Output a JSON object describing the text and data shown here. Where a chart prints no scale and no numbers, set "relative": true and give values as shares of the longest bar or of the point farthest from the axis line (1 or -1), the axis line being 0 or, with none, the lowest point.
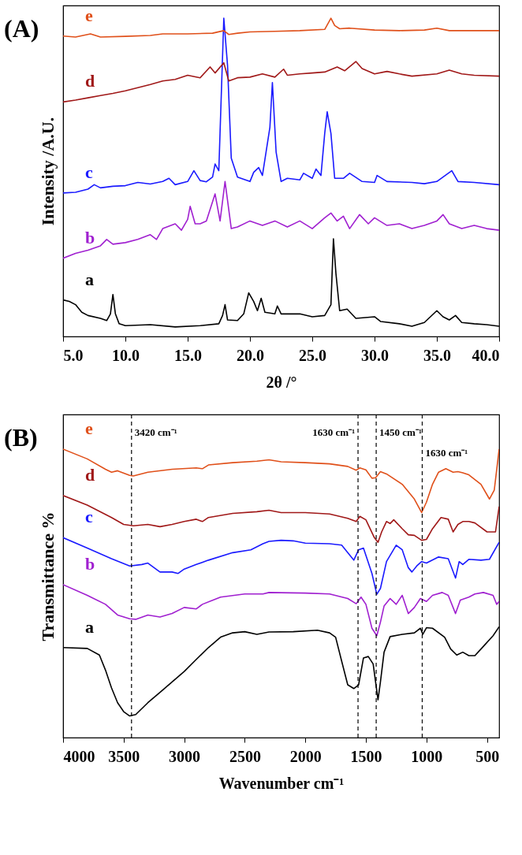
{
  "chart_data": [
    {
      "type": "line",
      "title": "(A)",
      "xlabel": "2θ /°",
      "ylabel": "Intensity /A.U.",
      "relative": true,
      "legend": false,
      "grid": false,
      "line_style": "solid",
      "xlim": [
        5,
        40
      ],
      "xticks": [
        {
          "value": 5,
          "label": "5.0"
        },
        {
          "value": 10,
          "label": "10.0"
        },
        {
          "value": 15,
          "label": "15.0"
        },
        {
          "value": 20,
          "label": "20.0"
        },
        {
          "value": 25,
          "label": "25.0"
        },
        {
          "value": 30,
          "label": "30.0"
        },
        {
          "value": 35,
          "label": "35.0"
        },
        {
          "value": 40,
          "label": "40.0"
        }
      ],
      "series": [
        {
          "name": "a",
          "color": "#000000",
          "x": [
            5,
            5.5,
            6,
            6.5,
            7,
            8,
            8.5,
            8.8,
            9.0,
            9.2,
            9.5,
            10,
            12,
            14,
            16,
            17.5,
            17.8,
            18.0,
            18.2,
            19,
            19.5,
            19.9,
            20.3,
            20.6,
            20.9,
            21.2,
            22,
            22.2,
            22.5,
            24,
            25,
            26,
            26.5,
            26.7,
            26.9,
            27.2,
            27.8,
            28.5,
            30,
            30.5,
            32,
            33,
            34,
            35,
            35.5,
            36,
            36.5,
            37,
            38,
            39,
            40
          ],
          "values": [
            0.115,
            0.11,
            0.1,
            0.076,
            0.066,
            0.057,
            0.05,
            0.071,
            0.132,
            0.071,
            0.04,
            0.034,
            0.037,
            0.03,
            0.034,
            0.04,
            0.066,
            0.1,
            0.052,
            0.05,
            0.071,
            0.137,
            0.11,
            0.081,
            0.12,
            0.076,
            0.071,
            0.096,
            0.071,
            0.071,
            0.062,
            0.066,
            0.1,
            0.307,
            0.198,
            0.081,
            0.086,
            0.057,
            0.062,
            0.047,
            0.04,
            0.032,
            0.044,
            0.081,
            0.062,
            0.052,
            0.066,
            0.044,
            0.04,
            0.037,
            0.032
          ]
        },
        {
          "name": "b",
          "color": "#a020d0",
          "x": [
            5,
            6,
            7,
            8,
            8.5,
            9,
            10,
            11,
            12,
            12.5,
            13,
            14,
            14.5,
            15,
            15.2,
            15.6,
            16,
            16.5,
            17.2,
            17.6,
            18.0,
            18.5,
            19,
            20,
            21,
            22,
            23,
            24,
            25,
            26,
            26.5,
            27,
            27.5,
            28,
            28.8,
            29.5,
            30,
            31,
            32,
            33,
            34,
            35,
            35.5,
            36,
            37,
            38,
            39,
            40
          ],
          "values": [
            0.246,
            0.261,
            0.271,
            0.285,
            0.305,
            0.29,
            0.295,
            0.305,
            0.32,
            0.305,
            0.339,
            0.354,
            0.334,
            0.368,
            0.409,
            0.354,
            0.354,
            0.363,
            0.448,
            0.363,
            0.487,
            0.339,
            0.344,
            0.363,
            0.349,
            0.363,
            0.344,
            0.363,
            0.339,
            0.373,
            0.388,
            0.363,
            0.378,
            0.339,
            0.383,
            0.354,
            0.373,
            0.349,
            0.354,
            0.339,
            0.349,
            0.363,
            0.383,
            0.354,
            0.339,
            0.349,
            0.339,
            0.334
          ]
        },
        {
          "name": "c",
          "color": "#1a1aff",
          "x": [
            5,
            6,
            7,
            7.5,
            8,
            9,
            10,
            11,
            12,
            13,
            13.5,
            14,
            15,
            15.5,
            16,
            16.5,
            17,
            17.2,
            17.5,
            17.9,
            18.2,
            18.5,
            19,
            20,
            20.3,
            20.7,
            21,
            21.6,
            21.8,
            22.1,
            22.5,
            23,
            24,
            24.3,
            25,
            25.3,
            25.7,
            26,
            26.2,
            26.5,
            26.8,
            27.5,
            28,
            29,
            30,
            30.2,
            31,
            33,
            34,
            35,
            36.2,
            36.7,
            38,
            40
          ],
          "values": [
            0.451,
            0.453,
            0.463,
            0.477,
            0.467,
            0.472,
            0.474,
            0.484,
            0.479,
            0.487,
            0.497,
            0.477,
            0.487,
            0.521,
            0.49,
            0.486,
            0.501,
            0.542,
            0.521,
            1.0,
            0.852,
            0.56,
            0.501,
            0.487,
            0.516,
            0.531,
            0.506,
            0.657,
            0.798,
            0.579,
            0.487,
            0.497,
            0.492,
            0.513,
            0.497,
            0.526,
            0.506,
            0.638,
            0.706,
            0.638,
            0.497,
            0.497,
            0.513,
            0.487,
            0.484,
            0.506,
            0.487,
            0.484,
            0.48,
            0.487,
            0.521,
            0.487,
            0.484,
            0.477
          ]
        },
        {
          "name": "d",
          "color": "#a01818",
          "x": [
            5,
            6,
            7,
            8,
            9,
            10,
            11,
            12,
            13,
            14,
            15,
            16,
            16.8,
            17.2,
            17.9,
            18.3,
            19,
            20,
            21,
            22,
            22.7,
            23,
            24,
            25,
            26,
            27,
            27.6,
            28.5,
            29,
            30,
            31,
            32,
            33,
            35,
            36,
            37,
            38,
            40
          ],
          "values": [
            0.737,
            0.743,
            0.75,
            0.757,
            0.764,
            0.772,
            0.782,
            0.792,
            0.803,
            0.808,
            0.821,
            0.813,
            0.847,
            0.828,
            0.86,
            0.803,
            0.813,
            0.815,
            0.825,
            0.815,
            0.84,
            0.821,
            0.825,
            0.828,
            0.831,
            0.847,
            0.835,
            0.864,
            0.842,
            0.825,
            0.833,
            0.825,
            0.818,
            0.825,
            0.837,
            0.825,
            0.821,
            0.818
          ]
        },
        {
          "name": "e",
          "color": "#e0501a",
          "x": [
            5,
            6,
            7.2,
            8,
            10,
            12,
            13,
            15,
            17,
            17.9,
            18.3,
            19,
            20,
            22,
            24,
            26,
            26.5,
            26.8,
            27.2,
            28,
            30,
            32,
            34,
            35,
            36,
            38,
            40
          ],
          "values": [
            0.944,
            0.941,
            0.951,
            0.941,
            0.943,
            0.946,
            0.951,
            0.951,
            0.953,
            0.961,
            0.949,
            0.953,
            0.957,
            0.959,
            0.961,
            0.965,
            1.0,
            0.977,
            0.967,
            0.969,
            0.963,
            0.961,
            0.963,
            0.969,
            0.961,
            0.961,
            0.961
          ]
        }
      ]
    },
    {
      "type": "line",
      "title": "(B)",
      "xlabel": "Wavenumber cm⁻¹",
      "ylabel": "Transmittance %",
      "relative": true,
      "legend": false,
      "grid": false,
      "line_style": "solid",
      "xlim": [
        4000,
        400
      ],
      "xticks": [
        4000,
        3500,
        3000,
        2500,
        2000,
        1500,
        1000,
        500
      ],
      "ref_lines": [
        {
          "axis": "x",
          "value": 3435,
          "label": "3420 cm⁻¹",
          "line_style": "dashed",
          "color": "#000000"
        },
        {
          "axis": "x",
          "value": 1565,
          "label": "1630 cm⁻¹",
          "line_style": "dashed",
          "color": "#000000"
        },
        {
          "axis": "x",
          "value": 1415,
          "label": "1450 cm⁻¹",
          "line_style": "dashed",
          "color": "#000000"
        },
        {
          "axis": "x",
          "value": 1035,
          "label": "1630 cm⁻¹",
          "line_style": "dashed",
          "color": "#000000"
        }
      ],
      "series": [
        {
          "name": "a",
          "color": "#000000",
          "x": [
            4000,
            3800,
            3700,
            3650,
            3600,
            3550,
            3500,
            3450,
            3400,
            3300,
            3200,
            3100,
            3000,
            2900,
            2800,
            2700,
            2600,
            2500,
            2400,
            2300,
            2100,
            1900,
            1800,
            1750,
            1700,
            1650,
            1600,
            1560,
            1520,
            1480,
            1440,
            1400,
            1380,
            1350,
            1300,
            1200,
            1100,
            1050,
            1030,
            1000,
            950,
            850,
            800,
            750,
            700,
            650,
            600,
            550,
            450,
            400
          ],
          "values": [
            0.312,
            0.309,
            0.286,
            0.234,
            0.172,
            0.121,
            0.09,
            0.075,
            0.08,
            0.121,
            0.157,
            0.193,
            0.229,
            0.271,
            0.312,
            0.348,
            0.363,
            0.367,
            0.358,
            0.366,
            0.367,
            0.372,
            0.363,
            0.348,
            0.265,
            0.183,
            0.17,
            0.183,
            0.276,
            0.281,
            0.255,
            0.131,
            0.193,
            0.296,
            0.35,
            0.358,
            0.363,
            0.379,
            0.358,
            0.381,
            0.379,
            0.348,
            0.307,
            0.286,
            0.296,
            0.284,
            0.284,
            0.307,
            0.353,
            0.384
          ]
        },
        {
          "name": "b",
          "color": "#a020d0",
          "x": [
            4000,
            3800,
            3650,
            3550,
            3450,
            3400,
            3300,
            3200,
            3100,
            3000,
            2900,
            2850,
            2700,
            2500,
            2350,
            2300,
            2000,
            1800,
            1650,
            1580,
            1540,
            1500,
            1450,
            1410,
            1380,
            1350,
            1300,
            1250,
            1200,
            1150,
            1100,
            1050,
            1000,
            950,
            870,
            820,
            760,
            720,
            650,
            600,
            530,
            450,
            420,
            400
          ],
          "values": [
            0.53,
            0.493,
            0.462,
            0.425,
            0.412,
            0.41,
            0.425,
            0.418,
            0.43,
            0.451,
            0.446,
            0.462,
            0.487,
            0.498,
            0.498,
            0.503,
            0.501,
            0.498,
            0.482,
            0.464,
            0.487,
            0.462,
            0.379,
            0.353,
            0.4,
            0.456,
            0.482,
            0.462,
            0.493,
            0.43,
            0.451,
            0.482,
            0.472,
            0.493,
            0.503,
            0.493,
            0.43,
            0.477,
            0.487,
            0.498,
            0.503,
            0.493,
            0.462,
            0.472
          ]
        },
        {
          "name": "c",
          "color": "#1a1aff",
          "x": [
            4000,
            3800,
            3600,
            3450,
            3350,
            3300,
            3200,
            3100,
            3050,
            3000,
            2900,
            2800,
            2600,
            2450,
            2350,
            2300,
            2200,
            2100,
            2000,
            1800,
            1700,
            1600,
            1560,
            1520,
            1450,
            1410,
            1380,
            1330,
            1250,
            1200,
            1150,
            1120,
            1080,
            1040,
            1000,
            900,
            820,
            760,
            730,
            700,
            650,
            550,
            480,
            400
          ],
          "values": [
            0.693,
            0.657,
            0.62,
            0.595,
            0.6,
            0.605,
            0.574,
            0.574,
            0.569,
            0.584,
            0.6,
            0.615,
            0.641,
            0.651,
            0.672,
            0.68,
            0.684,
            0.682,
            0.674,
            0.672,
            0.667,
            0.615,
            0.651,
            0.657,
            0.569,
            0.497,
            0.517,
            0.61,
            0.667,
            0.651,
            0.589,
            0.574,
            0.595,
            0.61,
            0.605,
            0.626,
            0.62,
            0.553,
            0.61,
            0.6,
            0.618,
            0.615,
            0.618,
            0.677
          ]
        },
        {
          "name": "d",
          "color": "#a01818",
          "x": [
            4000,
            3800,
            3600,
            3500,
            3420,
            3300,
            3200,
            3100,
            3000,
            2900,
            2850,
            2800,
            2600,
            2400,
            2300,
            2200,
            2000,
            1800,
            1650,
            1580,
            1550,
            1500,
            1430,
            1400,
            1370,
            1330,
            1300,
            1270,
            1200,
            1150,
            1100,
            1040,
            1000,
            950,
            880,
            820,
            780,
            740,
            700,
            650,
            600,
            500,
            430,
            400
          ],
          "values": [
            0.839,
            0.806,
            0.763,
            0.739,
            0.734,
            0.739,
            0.731,
            0.739,
            0.749,
            0.757,
            0.749,
            0.763,
            0.777,
            0.783,
            0.788,
            0.78,
            0.78,
            0.775,
            0.76,
            0.749,
            0.767,
            0.755,
            0.693,
            0.677,
            0.713,
            0.749,
            0.742,
            0.755,
            0.724,
            0.703,
            0.701,
            0.684,
            0.687,
            0.724,
            0.763,
            0.757,
            0.713,
            0.739,
            0.749,
            0.749,
            0.744,
            0.713,
            0.713,
            0.801
          ]
        },
        {
          "name": "e",
          "color": "#e0501a",
          "x": [
            4000,
            3800,
            3650,
            3600,
            3550,
            3450,
            3420,
            3300,
            3100,
            2900,
            2850,
            2800,
            2600,
            2400,
            2300,
            2200,
            2000,
            1800,
            1650,
            1580,
            1550,
            1500,
            1450,
            1420,
            1380,
            1330,
            1200,
            1100,
            1040,
            1000,
            950,
            900,
            840,
            780,
            740,
            700,
            650,
            550,
            480,
            440,
            400
          ],
          "values": [
            1.0,
            0.966,
            0.93,
            0.92,
            0.925,
            0.909,
            0.907,
            0.92,
            0.93,
            0.935,
            0.932,
            0.945,
            0.953,
            0.958,
            0.963,
            0.956,
            0.953,
            0.949,
            0.94,
            0.927,
            0.935,
            0.928,
            0.899,
            0.901,
            0.922,
            0.914,
            0.878,
            0.827,
            0.78,
            0.816,
            0.878,
            0.92,
            0.932,
            0.92,
            0.922,
            0.918,
            0.911,
            0.878,
            0.827,
            0.858,
            1.0
          ]
        }
      ]
    }
  ]
}
